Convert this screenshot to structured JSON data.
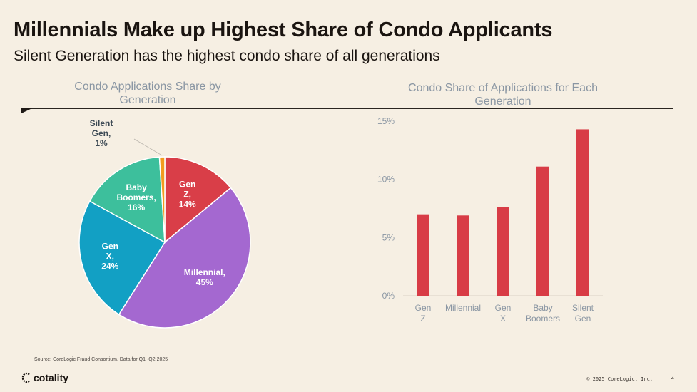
{
  "slide": {
    "title": "Millennials Make up Highest Share of Condo Applicants",
    "subtitle": "Silent Generation has the highest condo share of all generations",
    "source": "Source: CoreLogic Fraud Consortium, Data for Q1  -Q2 2025",
    "logo_text": "cotality",
    "copyright": "© 2025 CoreLogic, Inc.",
    "page_number": "4"
  },
  "colors": {
    "background": "#f6efe3",
    "gen_z": "#d93e48",
    "millennial": "#a468d0",
    "gen_x": "#12a0c4",
    "baby_boomers": "#3dbf9c",
    "silent_gen": "#f29b1e",
    "bar": "#d83c46"
  },
  "chart_data": [
    {
      "type": "pie",
      "title": "Condo Applications Share by Generation",
      "slices": [
        {
          "key": "gen_z",
          "label": "Gen Z,",
          "value_label": "14%",
          "value": 14
        },
        {
          "key": "millennial",
          "label": "Millennial,",
          "value_label": "45%",
          "value": 45
        },
        {
          "key": "gen_x",
          "label": "Gen X,",
          "value_label": "24%",
          "value": 24
        },
        {
          "key": "baby_boomers",
          "label": "Baby Boomers,",
          "value_label": "16%",
          "value": 16
        },
        {
          "key": "silent_gen",
          "label": "Silent Gen,",
          "value_label": "1%",
          "value": 1
        }
      ]
    },
    {
      "type": "bar",
      "title": "Condo Share of Applications for Each Generation",
      "categories": [
        "Gen Z",
        "Millennial",
        "Gen X",
        "Baby Boomers",
        "Silent Gen"
      ],
      "values": [
        7.0,
        6.9,
        7.6,
        11.1,
        14.3
      ],
      "ylim": [
        0,
        15
      ],
      "yticks": [
        0,
        5,
        10,
        15
      ],
      "ytick_labels": [
        "0%",
        "5%",
        "10%",
        "15%"
      ],
      "grid": false
    }
  ]
}
